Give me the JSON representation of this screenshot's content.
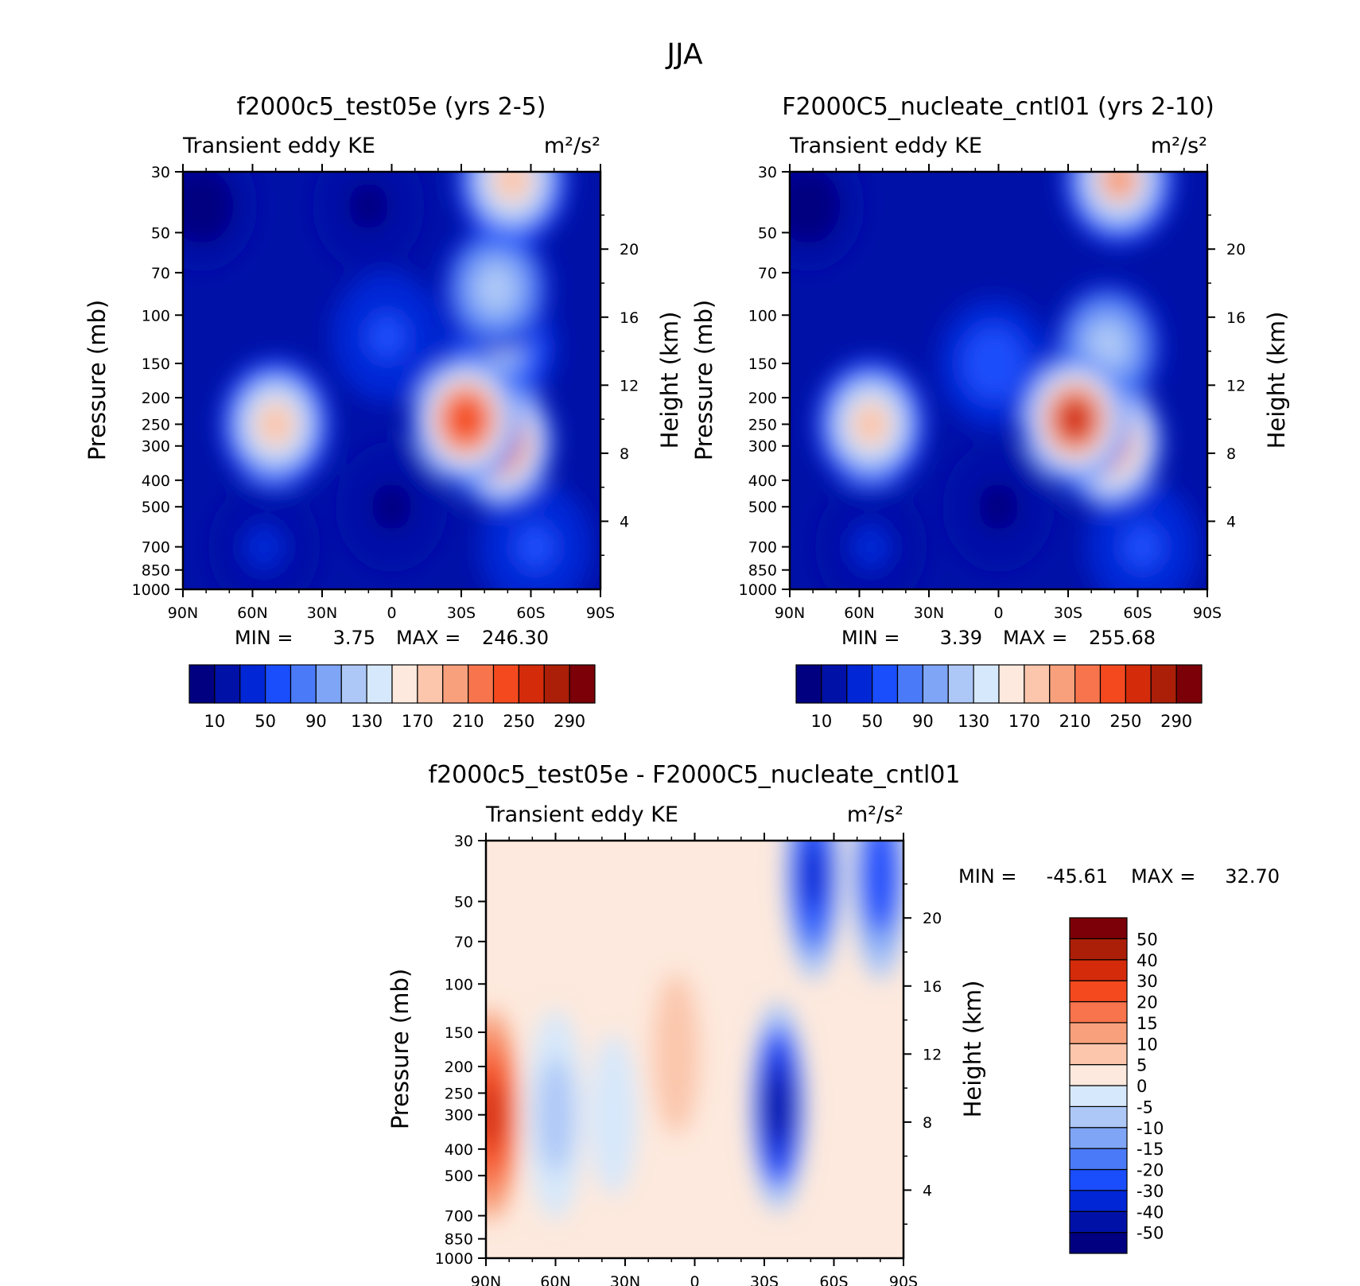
{
  "figure_title": "JJA",
  "chart_data": [
    {
      "type": "heatmap",
      "title": "f2000c5_test05e (yrs 2-5)",
      "variable": "Transient eddy KE",
      "units": "m²/s²",
      "xlabel": "",
      "ylabel": "Pressure (mb)",
      "y2label": "Height (km)",
      "x_ticks": [
        "90N",
        "60N",
        "30N",
        "0",
        "30S",
        "60S",
        "90S"
      ],
      "y_ticks": [
        30,
        50,
        70,
        100,
        150,
        200,
        250,
        300,
        400,
        500,
        700,
        850,
        1000
      ],
      "y2_ticks": [
        4,
        8,
        12,
        16,
        20
      ],
      "ylim": [
        1000,
        30
      ],
      "y_scale": "log",
      "min_label": "MIN =",
      "min_value": "3.75",
      "max_label": "MAX =",
      "max_value": "246.30",
      "colorbar_ticks": [
        "10",
        "50",
        "90",
        "130",
        "170",
        "210",
        "250",
        "290"
      ],
      "colorbar_levels": [
        10,
        30,
        50,
        70,
        90,
        110,
        130,
        150,
        170,
        190,
        210,
        230,
        250,
        270,
        290
      ],
      "colors": [
        "#000080",
        "#0011a8",
        "#0026d6",
        "#1a4dfb",
        "#4a7af8",
        "#7fa5f6",
        "#adc8f7",
        "#d6e8fb",
        "#fde9dd",
        "#fbc6ac",
        "#f8a07c",
        "#f7744c",
        "#f4491f",
        "#d42b0a",
        "#ab1e08",
        "#7b0007"
      ],
      "features": [
        {
          "lat": 82,
          "p": 40,
          "value": 4
        },
        {
          "lat": 10,
          "p": 40,
          "value": 5
        },
        {
          "lat": -52,
          "p": 32,
          "value": 180
        },
        {
          "lat": -47,
          "p": 130,
          "value": 110
        },
        {
          "lat": -45,
          "p": 80,
          "value": 120
        },
        {
          "lat": 50,
          "p": 250,
          "value": 170
        },
        {
          "lat": -32,
          "p": 240,
          "value": 246
        },
        {
          "lat": -46,
          "p": 290,
          "value": 245
        },
        {
          "lat": 2,
          "p": 120,
          "value": 50
        },
        {
          "lat": 0,
          "p": 500,
          "value": 8
        },
        {
          "lat": 55,
          "p": 700,
          "value": 30
        },
        {
          "lat": -62,
          "p": 700,
          "value": 55
        }
      ]
    },
    {
      "type": "heatmap",
      "title": "F2000C5_nucleate_cntl01 (yrs 2-10)",
      "variable": "Transient eddy KE",
      "units": "m²/s²",
      "xlabel": "",
      "ylabel": "Pressure (mb)",
      "y2label": "Height (km)",
      "x_ticks": [
        "90N",
        "60N",
        "30N",
        "0",
        "30S",
        "60S",
        "90S"
      ],
      "y_ticks": [
        30,
        50,
        70,
        100,
        150,
        200,
        250,
        300,
        400,
        500,
        700,
        850,
        1000
      ],
      "y2_ticks": [
        4,
        8,
        12,
        16,
        20
      ],
      "ylim": [
        1000,
        30
      ],
      "y_scale": "log",
      "min_label": "MIN =",
      "min_value": "3.39",
      "max_label": "MAX =",
      "max_value": "255.68",
      "colorbar_ticks": [
        "10",
        "50",
        "90",
        "130",
        "170",
        "210",
        "250",
        "290"
      ],
      "colorbar_levels": [
        10,
        30,
        50,
        70,
        90,
        110,
        130,
        150,
        170,
        190,
        210,
        230,
        250,
        270,
        290
      ],
      "colors": [
        "#000080",
        "#0011a8",
        "#0026d6",
        "#1a4dfb",
        "#4a7af8",
        "#7fa5f6",
        "#adc8f7",
        "#d6e8fb",
        "#fde9dd",
        "#fbc6ac",
        "#f8a07c",
        "#f7744c",
        "#f4491f",
        "#d42b0a",
        "#ab1e08",
        "#7b0007"
      ],
      "features": [
        {
          "lat": 82,
          "p": 40,
          "value": 4
        },
        {
          "lat": -52,
          "p": 32,
          "value": 190
        },
        {
          "lat": -47,
          "p": 130,
          "value": 115
        },
        {
          "lat": 55,
          "p": 250,
          "value": 175
        },
        {
          "lat": -33,
          "p": 240,
          "value": 255
        },
        {
          "lat": -47,
          "p": 290,
          "value": 240
        },
        {
          "lat": 2,
          "p": 150,
          "value": 60
        },
        {
          "lat": 0,
          "p": 500,
          "value": 8
        },
        {
          "lat": 55,
          "p": 700,
          "value": 30
        },
        {
          "lat": -62,
          "p": 700,
          "value": 55
        }
      ]
    },
    {
      "type": "heatmap",
      "title": "f2000c5_test05e - F2000C5_nucleate_cntl01",
      "variable": "Transient eddy KE",
      "units": "m²/s²",
      "xlabel": "",
      "ylabel": "Pressure (mb)",
      "y2label": "Height (km)",
      "x_ticks": [
        "90N",
        "60N",
        "30N",
        "0",
        "30S",
        "60S",
        "90S"
      ],
      "y_ticks": [
        30,
        50,
        70,
        100,
        150,
        200,
        250,
        300,
        400,
        500,
        700,
        850,
        1000
      ],
      "y2_ticks": [
        4,
        8,
        12,
        16,
        20
      ],
      "ylim": [
        1000,
        30
      ],
      "y_scale": "log",
      "min_label": "MIN =",
      "min_value": "-45.61",
      "max_label": "MAX =",
      "max_value": "32.70",
      "colorbar_ticks": [
        "-50",
        "-40",
        "-30",
        "-20",
        "-15",
        "-10",
        "-5",
        "0",
        "5",
        "10",
        "15",
        "20",
        "30",
        "40",
        "50"
      ],
      "colorbar_levels": [
        -50,
        -40,
        -30,
        -20,
        -15,
        -10,
        -5,
        0,
        5,
        10,
        15,
        20,
        30,
        40,
        50
      ],
      "colors": [
        "#000080",
        "#0011a8",
        "#0026d6",
        "#1a4dfb",
        "#4a7af8",
        "#7fa5f6",
        "#adc8f7",
        "#d6e8fb",
        "#fde9dd",
        "#fbc6ac",
        "#f8a07c",
        "#f7744c",
        "#f4491f",
        "#d42b0a",
        "#ab1e08",
        "#7b0007"
      ],
      "features": [
        {
          "lat": 88,
          "p": 300,
          "value": 32.7
        },
        {
          "lat": -36,
          "p": 280,
          "value": -45.6
        },
        {
          "lat": -51,
          "p": 40,
          "value": -35
        },
        {
          "lat": -80,
          "p": 40,
          "value": -30
        },
        {
          "lat": 8,
          "p": 180,
          "value": 8
        },
        {
          "lat": 60,
          "p": 300,
          "value": -8
        },
        {
          "lat": 35,
          "p": 300,
          "value": -4
        }
      ]
    }
  ]
}
